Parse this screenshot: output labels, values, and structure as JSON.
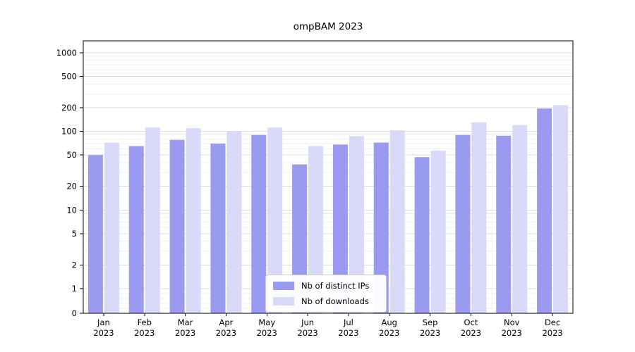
{
  "chart_data": {
    "type": "bar",
    "title": "ompBAM 2023",
    "scale": "symlog (log above 1, linear 0-1)",
    "grid": true,
    "legend_position": "lower center",
    "x_year": "2023",
    "categories": [
      "Jan",
      "Feb",
      "Mar",
      "Apr",
      "May",
      "Jun",
      "Jul",
      "Aug",
      "Sep",
      "Oct",
      "Nov",
      "Dec"
    ],
    "yticks": [
      0,
      1,
      2,
      5,
      10,
      20,
      50,
      100,
      200,
      500,
      1000
    ],
    "ylim": [
      0,
      1000
    ],
    "series": [
      {
        "name": "Nb of distinct IPs",
        "color": "#9a9af0",
        "values": [
          50,
          65,
          78,
          70,
          90,
          38,
          68,
          72,
          47,
          90,
          88,
          195
        ]
      },
      {
        "name": "Nb of downloads",
        "color": "#d9d9f9",
        "values": [
          72,
          112,
          110,
          100,
          112,
          65,
          87,
          103,
          57,
          130,
          120,
          215
        ]
      }
    ]
  }
}
